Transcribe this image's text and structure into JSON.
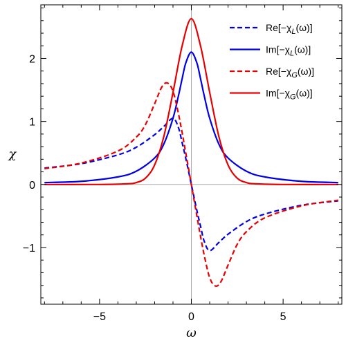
{
  "chart_data": {
    "type": "line",
    "xlabel": "ω",
    "ylabel": "χ",
    "xlim": [
      -8.2,
      8.2
    ],
    "ylim": [
      -1.9,
      2.85
    ],
    "grid": false,
    "legend_placement": "top-right",
    "x_ticks": [
      -5,
      0,
      5
    ],
    "x_tick_labels": [
      "−5",
      "0",
      "5"
    ],
    "y_ticks": [
      -1,
      0,
      1,
      2
    ],
    "y_tick_labels": [
      "−1",
      "0",
      "1",
      "2"
    ],
    "x_minor_step": 1,
    "y_minor_step": 0.2,
    "zero_lines": true,
    "colors": {
      "blue": "#0000e6",
      "red": "#e60000",
      "zero": "#aaaaaa"
    },
    "series": [
      {
        "name": "Re[−χL(ω)]",
        "legend_label": "Re[−χ_L(ω)]",
        "color": "#0000e6",
        "dash": true,
        "x": [
          -8,
          -6,
          -4,
          -3,
          -2,
          -1.5,
          -1,
          -0.7,
          -0.5,
          -0.3,
          0,
          0.3,
          0.5,
          0.7,
          1,
          1.5,
          2,
          3,
          4,
          6,
          8
        ],
        "y": [
          0.26,
          0.33,
          0.47,
          0.59,
          0.79,
          0.92,
          1.05,
          0.9,
          0.66,
          0.41,
          0,
          -0.41,
          -0.66,
          -0.9,
          -1.05,
          -0.92,
          -0.79,
          -0.59,
          -0.47,
          -0.33,
          -0.26
        ]
      },
      {
        "name": "Im[−χL(ω)]",
        "legend_label": "Im[−χ_L(ω)]",
        "color": "#0000e6",
        "dash": false,
        "x": [
          -8,
          -6,
          -4,
          -3,
          -2,
          -1.5,
          -1,
          -0.7,
          -0.5,
          -0.3,
          0,
          0.3,
          0.5,
          0.7,
          1,
          1.5,
          2,
          3,
          4,
          6,
          8
        ],
        "y": [
          0.03,
          0.05,
          0.12,
          0.21,
          0.42,
          0.64,
          1.05,
          1.41,
          1.68,
          1.93,
          2.1,
          1.93,
          1.68,
          1.41,
          1.05,
          0.64,
          0.42,
          0.21,
          0.12,
          0.05,
          0.03
        ]
      },
      {
        "name": "Re[−χG(ω)]",
        "legend_label": "Re[−χ_G(ω)]",
        "color": "#e60000",
        "dash": true,
        "x": [
          -8,
          -6,
          -4,
          -3,
          -2.5,
          -2,
          -1.6,
          -1.3,
          -1,
          -0.7,
          -0.4,
          0,
          0.4,
          0.7,
          1,
          1.3,
          1.6,
          2,
          2.5,
          3,
          4,
          6,
          8
        ],
        "y": [
          0.25,
          0.34,
          0.53,
          0.75,
          0.95,
          1.28,
          1.55,
          1.61,
          1.48,
          1.12,
          0.66,
          0,
          -0.66,
          -1.12,
          -1.48,
          -1.61,
          -1.55,
          -1.28,
          -0.95,
          -0.75,
          -0.53,
          -0.34,
          -0.25
        ]
      },
      {
        "name": "Im[−χG(ω)]",
        "legend_label": "Im[−χ_G(ω)]",
        "color": "#e60000",
        "dash": false,
        "x": [
          -8,
          -5,
          -3.5,
          -3,
          -2.5,
          -2,
          -1.5,
          -1,
          -0.5,
          0,
          0.5,
          1,
          1.5,
          2,
          2.5,
          3,
          3.5,
          5,
          8
        ],
        "y": [
          0,
          0,
          0.01,
          0.03,
          0.1,
          0.31,
          0.76,
          1.46,
          2.2,
          2.63,
          2.2,
          1.46,
          0.76,
          0.31,
          0.1,
          0.03,
          0.01,
          0,
          0
        ]
      }
    ]
  }
}
